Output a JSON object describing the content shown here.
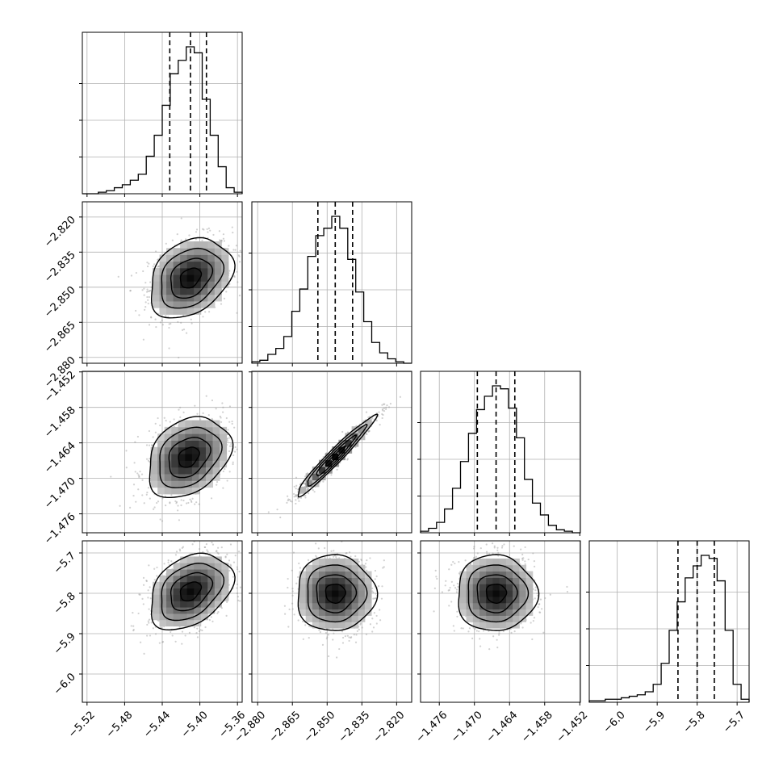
{
  "chart_data": {
    "type": "corner",
    "grid": true,
    "colors": {
      "line": "#000000",
      "grid": "#b0b0b0",
      "scatter": "#9a9a9a",
      "background": "#ffffff"
    },
    "parameters": [
      {
        "index": 0,
        "range": [
          -5.525,
          -5.355
        ],
        "median": -5.41,
        "q16": -5.432,
        "q84": -5.393,
        "ticks": [
          -5.52,
          -5.48,
          -5.44,
          -5.4,
          -5.36
        ],
        "tick_labels": [
          "−5.52",
          "−5.48",
          "−5.44",
          "−5.40",
          "−5.36"
        ]
      },
      {
        "index": 1,
        "range": [
          -2.8825,
          -2.8135
        ],
        "median": -2.8465,
        "q16": -2.854,
        "q84": -2.839,
        "ticks": [
          -2.88,
          -2.865,
          -2.85,
          -2.835,
          -2.82
        ],
        "tick_labels": [
          "−2.880",
          "−2.865",
          "−2.850",
          "−2.835",
          "−2.820"
        ]
      },
      {
        "index": 2,
        "range": [
          -1.4792,
          -1.4519
        ],
        "median": -1.4663,
        "q16": -1.4695,
        "q84": -1.4631,
        "ticks": [
          -1.476,
          -1.47,
          -1.464,
          -1.458,
          -1.452
        ],
        "tick_labels": [
          "−1.476",
          "−1.470",
          "−1.464",
          "−1.458",
          "−1.452"
        ]
      },
      {
        "index": 3,
        "range": [
          -6.07,
          -5.67
        ],
        "median": -5.8,
        "q16": -5.848,
        "q84": -5.757,
        "ticks": [
          -6.0,
          -5.9,
          -5.8,
          -5.7
        ],
        "tick_labels": [
          "−6.0",
          "−5.9",
          "−5.8",
          "−5.7"
        ]
      }
    ],
    "histograms": [
      {
        "param": 0,
        "bin_edges": [
          -5.525,
          -5.5165,
          -5.508,
          -5.4995,
          -5.491,
          -5.4825,
          -5.474,
          -5.4655,
          -5.457,
          -5.4485,
          -5.44,
          -5.4315,
          -5.423,
          -5.4145,
          -5.406,
          -5.3975,
          -5.389,
          -5.3805,
          -5.372,
          -5.3635,
          -5.355
        ],
        "counts": [
          0.0,
          0.0,
          0.01,
          0.02,
          0.04,
          0.06,
          0.09,
          0.13,
          0.25,
          0.39,
          0.59,
          0.8,
          0.89,
          0.98,
          0.94,
          0.63,
          0.39,
          0.18,
          0.04,
          0.01
        ]
      },
      {
        "param": 1,
        "bin_edges": [
          -2.8825,
          -2.87905,
          -2.8756,
          -2.87215,
          -2.8687,
          -2.86525,
          -2.8618,
          -2.85835,
          -2.8549,
          -2.85145,
          -2.848,
          -2.84455,
          -2.8411,
          -2.83765,
          -2.8342,
          -2.83075,
          -2.8273,
          -2.82385,
          -2.8204,
          -2.81695,
          -2.8135
        ],
        "counts": [
          0.01,
          0.02,
          0.06,
          0.1,
          0.18,
          0.35,
          0.5,
          0.72,
          0.86,
          0.91,
          0.99,
          0.91,
          0.7,
          0.48,
          0.28,
          0.14,
          0.07,
          0.03,
          0.01,
          0.0
        ]
      },
      {
        "param": 2,
        "bin_edges": [
          -1.4792,
          -1.477835,
          -1.47647,
          -1.475105,
          -1.47374,
          -1.472375,
          -1.47101,
          -1.469645,
          -1.46828,
          -1.466915,
          -1.46555,
          -1.464185,
          -1.46282,
          -1.461455,
          -1.46009,
          -1.458725,
          -1.45736,
          -1.455995,
          -1.45463,
          -1.453265,
          -1.4519
        ],
        "counts": [
          0.01,
          0.03,
          0.07,
          0.16,
          0.3,
          0.48,
          0.67,
          0.83,
          0.92,
          0.99,
          0.97,
          0.84,
          0.64,
          0.36,
          0.2,
          0.12,
          0.05,
          0.02,
          0.01,
          0.0
        ]
      },
      {
        "param": 3,
        "bin_edges": [
          -6.07,
          -6.05,
          -6.03,
          -6.01,
          -5.99,
          -5.97,
          -5.95,
          -5.93,
          -5.91,
          -5.89,
          -5.87,
          -5.85,
          -5.83,
          -5.81,
          -5.79,
          -5.77,
          -5.75,
          -5.73,
          -5.71,
          -5.69,
          -5.67
        ],
        "counts": [
          0.01,
          0.01,
          0.02,
          0.02,
          0.03,
          0.04,
          0.05,
          0.07,
          0.12,
          0.26,
          0.48,
          0.67,
          0.83,
          0.91,
          0.98,
          0.96,
          0.81,
          0.48,
          0.12,
          0.02
        ]
      }
    ],
    "pairs": [
      {
        "x": 0,
        "y": 1,
        "center": [
          -5.41,
          -2.846
        ],
        "sigma": [
          0.022,
          0.0085
        ],
        "rho": 0.3
      },
      {
        "x": 0,
        "y": 2,
        "center": [
          -5.412,
          -1.4664
        ],
        "sigma": [
          0.022,
          0.0034
        ],
        "rho": 0.3
      },
      {
        "x": 1,
        "y": 2,
        "center": [
          -2.8465,
          -1.4663
        ],
        "sigma": [
          0.0085,
          0.0034
        ],
        "rho": 0.97
      },
      {
        "x": 0,
        "y": 3,
        "center": [
          -5.41,
          -5.795
        ],
        "sigma": [
          0.022,
          0.047
        ],
        "rho": 0.35
      },
      {
        "x": 1,
        "y": 3,
        "center": [
          -2.8465,
          -5.8
        ],
        "sigma": [
          0.0085,
          0.047
        ],
        "rho": 0.0
      },
      {
        "x": 2,
        "y": 3,
        "center": [
          -1.4663,
          -5.8
        ],
        "sigma": [
          0.0034,
          0.047
        ],
        "rho": 0.0
      }
    ],
    "contour_levels_sigma": [
      0.5,
      1.0,
      1.5,
      2.0
    ]
  }
}
